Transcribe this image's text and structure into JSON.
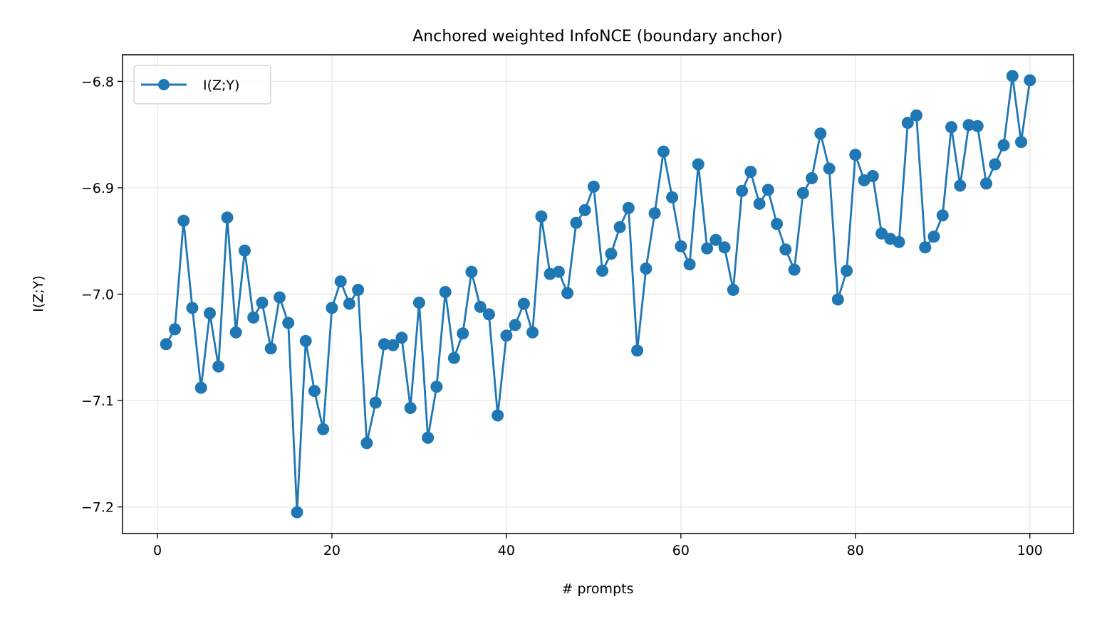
{
  "chart_data": {
    "type": "line",
    "title": "Anchored weighted InfoNCE (boundary anchor)",
    "xlabel": "# prompts",
    "ylabel": "I(Z;Y)",
    "xlim": [
      -4,
      105
    ],
    "ylim": [
      -7.225,
      -6.775
    ],
    "xticks": [
      0,
      20,
      40,
      60,
      80,
      100
    ],
    "xtick_labels": [
      "0",
      "20",
      "40",
      "60",
      "80",
      "100"
    ],
    "yticks": [
      -7.2,
      -7.1,
      -7.0,
      -6.9,
      -6.8
    ],
    "ytick_labels": [
      "−7.2",
      "−7.1",
      "−7.0",
      "−6.9",
      "−6.8"
    ],
    "grid": true,
    "legend_position": "upper-left",
    "series": [
      {
        "name": "I(Z;Y)",
        "color": "#1f77b4",
        "marker": "circle",
        "x": [
          1,
          2,
          3,
          4,
          5,
          6,
          7,
          8,
          9,
          10,
          11,
          12,
          13,
          14,
          15,
          16,
          17,
          18,
          19,
          20,
          21,
          22,
          23,
          24,
          25,
          26,
          27,
          28,
          29,
          30,
          31,
          32,
          33,
          34,
          35,
          36,
          37,
          38,
          39,
          40,
          41,
          42,
          43,
          44,
          45,
          46,
          47,
          48,
          49,
          50,
          51,
          52,
          53,
          54,
          55,
          56,
          57,
          58,
          59,
          60,
          61,
          62,
          63,
          64,
          65,
          66,
          67,
          68,
          69,
          70,
          71,
          72,
          73,
          74,
          75,
          76,
          77,
          78,
          79,
          80,
          81,
          82,
          83,
          84,
          85,
          86,
          87,
          88,
          89,
          90,
          91,
          92,
          93,
          94,
          95,
          96,
          97,
          98,
          99,
          100
        ],
        "y": [
          -7.047,
          -7.033,
          -6.931,
          -7.013,
          -7.088,
          -7.018,
          -7.068,
          -6.928,
          -7.036,
          -6.959,
          -7.022,
          -7.008,
          -7.051,
          -7.003,
          -7.027,
          -7.205,
          -7.044,
          -7.091,
          -7.127,
          -7.013,
          -6.988,
          -7.009,
          -6.996,
          -7.14,
          -7.102,
          -7.047,
          -7.048,
          -7.041,
          -7.107,
          -7.008,
          -7.135,
          -7.087,
          -6.998,
          -7.06,
          -7.037,
          -6.979,
          -7.012,
          -7.019,
          -7.114,
          -7.039,
          -7.029,
          -7.009,
          -7.036,
          -6.927,
          -6.981,
          -6.979,
          -6.999,
          -6.933,
          -6.921,
          -6.899,
          -6.978,
          -6.962,
          -6.937,
          -6.919,
          -7.053,
          -6.976,
          -6.924,
          -6.866,
          -6.909,
          -6.955,
          -6.972,
          -6.878,
          -6.957,
          -6.949,
          -6.956,
          -6.996,
          -6.903,
          -6.885,
          -6.915,
          -6.902,
          -6.934,
          -6.958,
          -6.977,
          -6.905,
          -6.891,
          -6.849,
          -6.882,
          -7.005,
          -6.978,
          -6.869,
          -6.893,
          -6.889,
          -6.943,
          -6.948,
          -6.951,
          -6.839,
          -6.832,
          -6.956,
          -6.946,
          -6.926,
          -6.843,
          -6.898,
          -6.841,
          -6.842,
          -6.896,
          -6.878,
          -6.86,
          -6.795,
          -6.857,
          -6.799
        ]
      }
    ]
  }
}
